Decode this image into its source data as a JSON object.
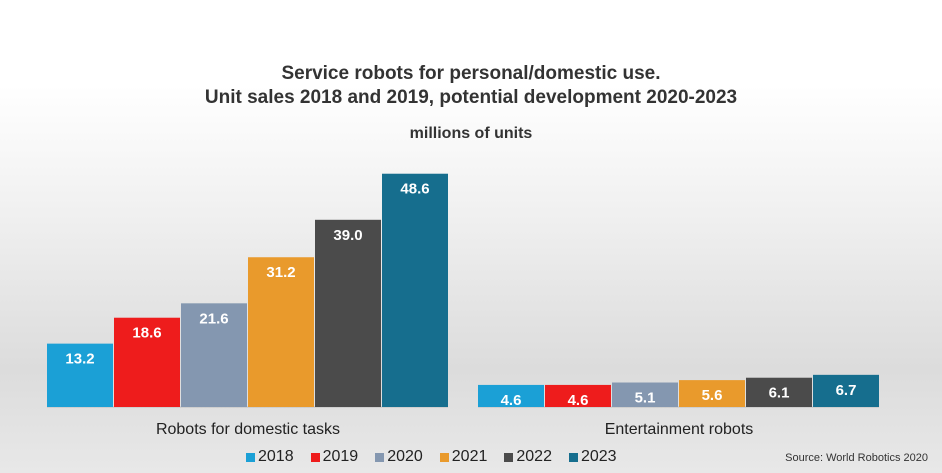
{
  "title": {
    "line1": "Service robots for personal/domestic use.",
    "line2": "Unit sales 2018 and 2019, potential development 2020-2023"
  },
  "subtitle": "millions of units",
  "source": "Source: World Robotics 2020",
  "colors": {
    "2018": "#1ba0d6",
    "2019": "#ee1c1c",
    "2020": "#8497b0",
    "2021": "#e99a2c",
    "2022": "#4b4b4b",
    "2023": "#166e8e"
  },
  "chart_data": {
    "type": "bar",
    "title": "Service robots for personal/domestic use. Unit sales 2018 and 2019, potential development 2020-2023",
    "ylabel": "millions of units",
    "categories": [
      "Robots for domestic tasks",
      "Entertainment robots"
    ],
    "series": [
      {
        "name": "2018",
        "values": [
          13.2,
          4.6
        ]
      },
      {
        "name": "2019",
        "values": [
          18.6,
          4.6
        ]
      },
      {
        "name": "2020",
        "values": [
          21.6,
          5.1
        ]
      },
      {
        "name": "2021",
        "values": [
          31.2,
          5.6
        ]
      },
      {
        "name": "2022",
        "values": [
          39.0,
          6.1
        ]
      },
      {
        "name": "2023",
        "values": [
          48.6,
          6.7
        ]
      }
    ],
    "ylim": [
      0,
      50
    ],
    "grid": false,
    "legend": "bottom"
  }
}
